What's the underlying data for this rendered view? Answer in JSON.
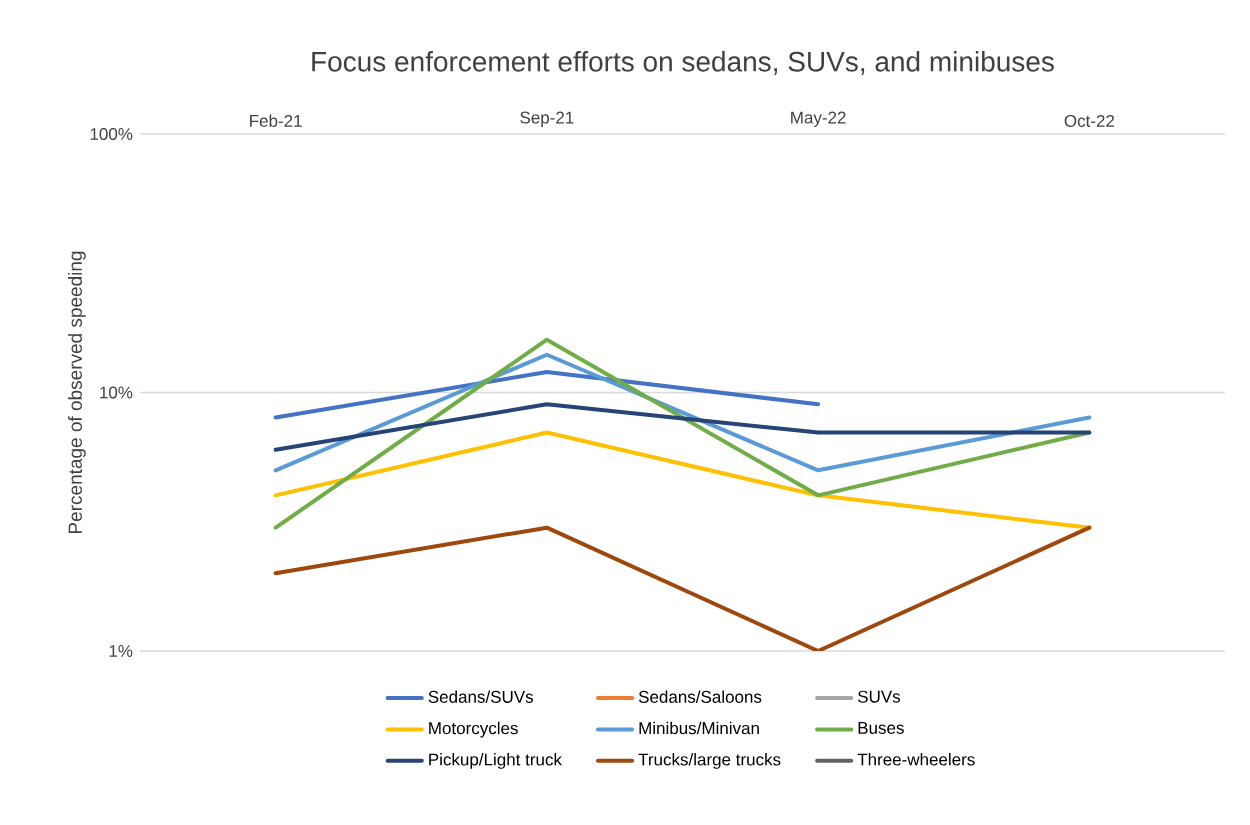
{
  "chart_data": {
    "type": "line",
    "title": "Focus enforcement efforts on sedans, SUVs, and minibuses",
    "ylabel": "Percentage of observed speeding",
    "categories": [
      "Feb-21",
      "Sep-21",
      "May-22",
      "Oct-22"
    ],
    "series": [
      {
        "name": "Sedans/SUVs",
        "color": "#4472c4",
        "values": [
          8,
          12,
          9,
          null
        ]
      },
      {
        "name": "Sedans/Saloons",
        "color": "#ed7d31",
        "values": [
          null,
          null,
          null,
          null
        ]
      },
      {
        "name": "SUVs",
        "color": "#a5a5a5",
        "values": [
          null,
          null,
          null,
          null
        ]
      },
      {
        "name": "Motorcycles",
        "color": "#ffc000",
        "values": [
          4,
          7,
          4,
          3
        ]
      },
      {
        "name": "Minibus/Minivan",
        "color": "#5b9bd5",
        "values": [
          5,
          14,
          5,
          8
        ]
      },
      {
        "name": "Buses",
        "color": "#70ad47",
        "values": [
          3,
          16,
          4,
          7
        ]
      },
      {
        "name": "Pickup/Light truck",
        "color": "#264478",
        "values": [
          6,
          9,
          7,
          7
        ]
      },
      {
        "name": "Trucks/large trucks",
        "color": "#9e480e",
        "values": [
          2,
          3,
          1,
          3
        ]
      },
      {
        "name": "Three-wheelers",
        "color": "#636363",
        "values": [
          null,
          null,
          null,
          null
        ]
      }
    ],
    "log": "y",
    "ylim": [
      1,
      100
    ],
    "yticks": [
      {
        "value": 1,
        "label": "1%"
      },
      {
        "value": 10,
        "label": "10%"
      },
      {
        "value": 100,
        "label": "100%"
      }
    ],
    "grid": "y",
    "legend": "bottom",
    "marker": "none",
    "line_style": "solid"
  }
}
